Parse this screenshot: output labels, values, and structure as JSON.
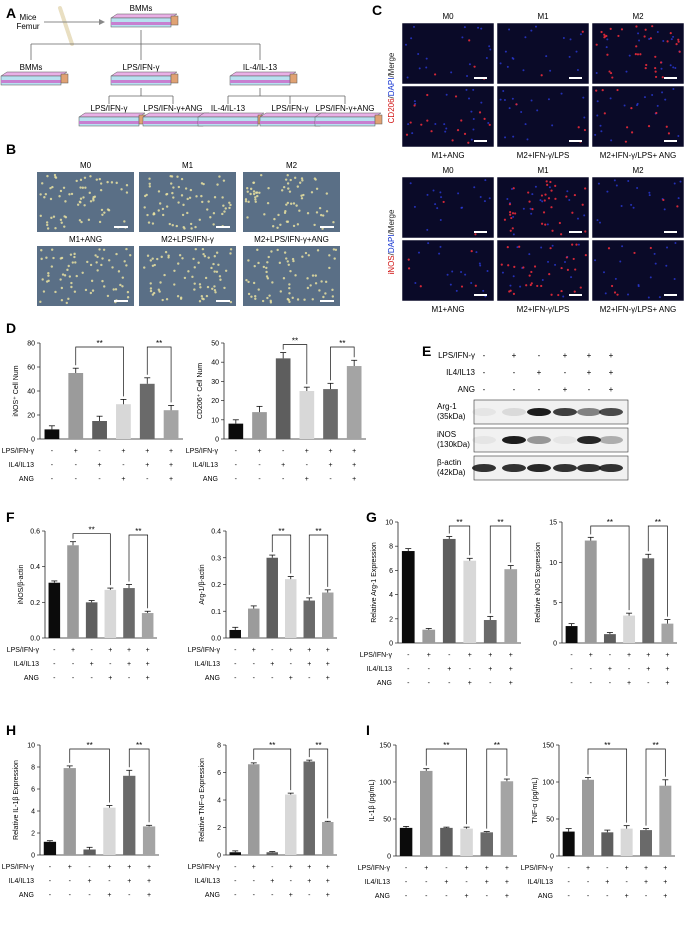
{
  "panel_labels": [
    "A",
    "B",
    "C",
    "D",
    "E",
    "F",
    "G",
    "H",
    "I"
  ],
  "panelA": {
    "source_label": "Mice\nFemur",
    "top": "BMMs",
    "branches": [
      "BMMs",
      "LPS/IFN-γ",
      "IL-4/IL-13"
    ],
    "bottom": [
      "LPS/IFN-γ",
      "LPS/IFN-γ+ANG",
      "IL-4/IL-13",
      "LPS/IFN-γ",
      "LPS/IFN-γ+ANG"
    ]
  },
  "panelB": {
    "top_labels": [
      "M0",
      "M1",
      "M2"
    ],
    "bottom_labels": [
      "M1+ANG",
      "M2+LPS/IFN-γ",
      "M2+LPS/IFN-γ+ANG"
    ],
    "colors": {
      "bg": "#5a6f86"
    }
  },
  "panelC": {
    "block1": {
      "ylabel": {
        "red": "CD206",
        "blue": "DAPI",
        "merge": "/Merge",
        "sep": "/"
      },
      "top_labels": [
        "M0",
        "M1",
        "M2"
      ],
      "bottom_labels": [
        "M1+ANG",
        "M2+IFN-γ/LPS",
        "M2+IFN-γ/LPS+ ANG"
      ]
    },
    "block2": {
      "ylabel": {
        "red": "iNOS",
        "blue": "DAPI",
        "merge": "/Merge",
        "sep": "/"
      },
      "top_labels": [
        "M0",
        "M1",
        "M2"
      ],
      "bottom_labels": [
        "M1+ANG",
        "M2+IFN-γ/LPS",
        "M2+IFN-γ/LPS+ ANG"
      ]
    }
  },
  "treatment_rows": {
    "labels": [
      "LPS/IFN-γ",
      "IL4/IL13",
      "ANG"
    ],
    "signs": [
      [
        "-",
        "+",
        "-",
        "+",
        "+",
        "+"
      ],
      [
        "-",
        "-",
        "+",
        "-",
        "+",
        "+"
      ],
      [
        "-",
        "-",
        "-",
        "+",
        "-",
        "+"
      ]
    ]
  },
  "significance": "**",
  "bar_colors": [
    "#0b0b0b",
    "#9b9b9b",
    "#5e5e5e",
    "#d8d8d8",
    "#6a6a6a",
    "#a4a4a4"
  ],
  "panelE": {
    "rows": [
      "LPS/IFN-γ",
      "IL4/IL13",
      "ANG"
    ],
    "signs": [
      [
        "-",
        "+",
        "-",
        "+",
        "+",
        "+"
      ],
      [
        "-",
        "-",
        "+",
        "-",
        "+",
        "+"
      ],
      [
        "-",
        "-",
        "-",
        "+",
        "-",
        "+"
      ]
    ],
    "blots": [
      {
        "name": "Arg-1",
        "kda": "(35kDa)"
      },
      {
        "name": "iNOS",
        "kda": "(130kDa)"
      },
      {
        "name": "β-actin",
        "kda": "(42kDa)"
      }
    ]
  },
  "chart_data": [
    {
      "id": "D1",
      "type": "bar",
      "ylabel": "iNOS⁺ Cell Num",
      "ylim": [
        0,
        80
      ],
      "yticks": [
        0,
        20,
        40,
        60,
        80
      ],
      "values": [
        8,
        55,
        15,
        29,
        46,
        24
      ],
      "errors": [
        3,
        4,
        4,
        4,
        5,
        4
      ],
      "sig": [
        [
          1,
          3
        ],
        [
          4,
          5
        ]
      ]
    },
    {
      "id": "D2",
      "type": "bar",
      "ylabel": "CD206⁺ Cell Num",
      "ylim": [
        0,
        50
      ],
      "yticks": [
        0,
        10,
        20,
        30,
        40,
        50
      ],
      "values": [
        8,
        14,
        42,
        25,
        26,
        38
      ],
      "errors": [
        2,
        3,
        3,
        2,
        3,
        3
      ],
      "sig": [
        [
          2,
          3
        ],
        [
          4,
          5
        ]
      ]
    },
    {
      "id": "F1",
      "type": "bar",
      "ylabel": "iNOS/β-actin",
      "ylim": [
        0,
        0.6
      ],
      "yticks": [
        0.0,
        0.2,
        0.4,
        0.6
      ],
      "values": [
        0.31,
        0.52,
        0.2,
        0.27,
        0.28,
        0.14
      ],
      "errors": [
        0.01,
        0.02,
        0.01,
        0.01,
        0.02,
        0.01
      ],
      "sig": [
        [
          1,
          3
        ],
        [
          4,
          5
        ]
      ]
    },
    {
      "id": "F2",
      "type": "bar",
      "ylabel": "Arg-1/β-actin",
      "ylim": [
        0,
        0.4
      ],
      "yticks": [
        0.0,
        0.1,
        0.2,
        0.3,
        0.4
      ],
      "values": [
        0.03,
        0.11,
        0.3,
        0.22,
        0.14,
        0.17
      ],
      "errors": [
        0.01,
        0.01,
        0.01,
        0.01,
        0.01,
        0.01
      ],
      "sig": [
        [
          2,
          3
        ],
        [
          4,
          5
        ]
      ]
    },
    {
      "id": "G1",
      "type": "bar",
      "ylabel": "Relative Arg-1 Expression",
      "ylim": [
        0,
        10
      ],
      "yticks": [
        0,
        2,
        4,
        6,
        8,
        10
      ],
      "values": [
        7.6,
        1.1,
        8.6,
        6.8,
        1.9,
        6.1
      ],
      "errors": [
        0.2,
        0.1,
        0.2,
        0.2,
        0.3,
        0.3
      ],
      "sig": [
        [
          2,
          3
        ],
        [
          4,
          5
        ]
      ]
    },
    {
      "id": "G2",
      "type": "bar",
      "ylabel": "Relative iNOS Expression",
      "ylim": [
        0,
        15
      ],
      "yticks": [
        0,
        5,
        10,
        15
      ],
      "values": [
        2.1,
        12.7,
        1.1,
        3.4,
        10.5,
        2.4
      ],
      "errors": [
        0.3,
        0.4,
        0.2,
        0.3,
        0.5,
        0.5
      ],
      "sig": [
        [
          1,
          3
        ],
        [
          4,
          5
        ]
      ]
    },
    {
      "id": "H1",
      "type": "bar",
      "ylabel": "Relative IL-1β Expression",
      "ylim": [
        0,
        10
      ],
      "yticks": [
        0,
        2,
        4,
        6,
        8,
        10
      ],
      "values": [
        1.2,
        7.9,
        0.5,
        4.3,
        7.2,
        2.6
      ],
      "errors": [
        0.1,
        0.2,
        0.2,
        0.2,
        0.5,
        0.1
      ],
      "sig": [
        [
          1,
          3
        ],
        [
          4,
          5
        ]
      ]
    },
    {
      "id": "H2",
      "type": "bar",
      "ylabel": "Relative TNF-α Expression",
      "ylim": [
        0,
        8
      ],
      "yticks": [
        0,
        2,
        4,
        6,
        8
      ],
      "values": [
        0.2,
        6.6,
        0.2,
        4.4,
        6.8,
        2.4
      ],
      "errors": [
        0.1,
        0.1,
        0.05,
        0.1,
        0.1,
        0.05
      ],
      "sig": [
        [
          1,
          3
        ],
        [
          4,
          5
        ]
      ]
    },
    {
      "id": "I1",
      "type": "bar",
      "ylabel": "IL-1β (pg/mL)",
      "ylim": [
        0,
        150
      ],
      "yticks": [
        0,
        50,
        100,
        150
      ],
      "values": [
        38,
        115,
        38,
        37,
        32,
        101
      ],
      "errors": [
        2,
        3,
        1,
        2,
        1,
        3
      ],
      "sig": [
        [
          1,
          3
        ],
        [
          4,
          5
        ]
      ]
    },
    {
      "id": "I2",
      "type": "bar",
      "ylabel": "TNF-α (pg/mL)",
      "ylim": [
        0,
        150
      ],
      "yticks": [
        0,
        50,
        100,
        150
      ],
      "values": [
        33,
        103,
        32,
        37,
        35,
        95
      ],
      "errors": [
        4,
        3,
        3,
        4,
        2,
        8
      ],
      "sig": [
        [
          1,
          3
        ],
        [
          4,
          5
        ]
      ]
    }
  ]
}
